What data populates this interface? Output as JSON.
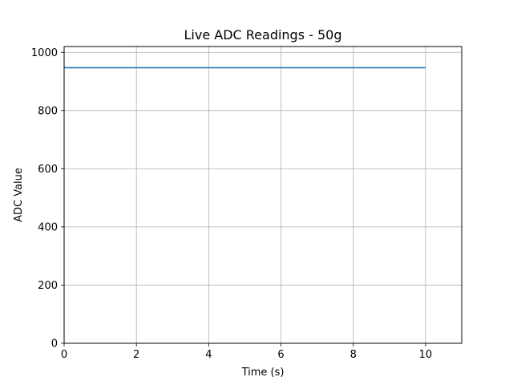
{
  "chart_data": {
    "type": "line",
    "title": "Live ADC Readings - 50g",
    "xlabel": "Time (s)",
    "ylabel": "ADC Value",
    "xlim": [
      0,
      11
    ],
    "ylim": [
      0,
      1020
    ],
    "xticks": [
      0,
      2,
      4,
      6,
      8,
      10
    ],
    "yticks": [
      0,
      200,
      400,
      600,
      800,
      1000
    ],
    "grid": true,
    "series": [
      {
        "color": "#1f77b4",
        "x": [
          0,
          10
        ],
        "y": [
          947,
          947
        ]
      }
    ]
  }
}
